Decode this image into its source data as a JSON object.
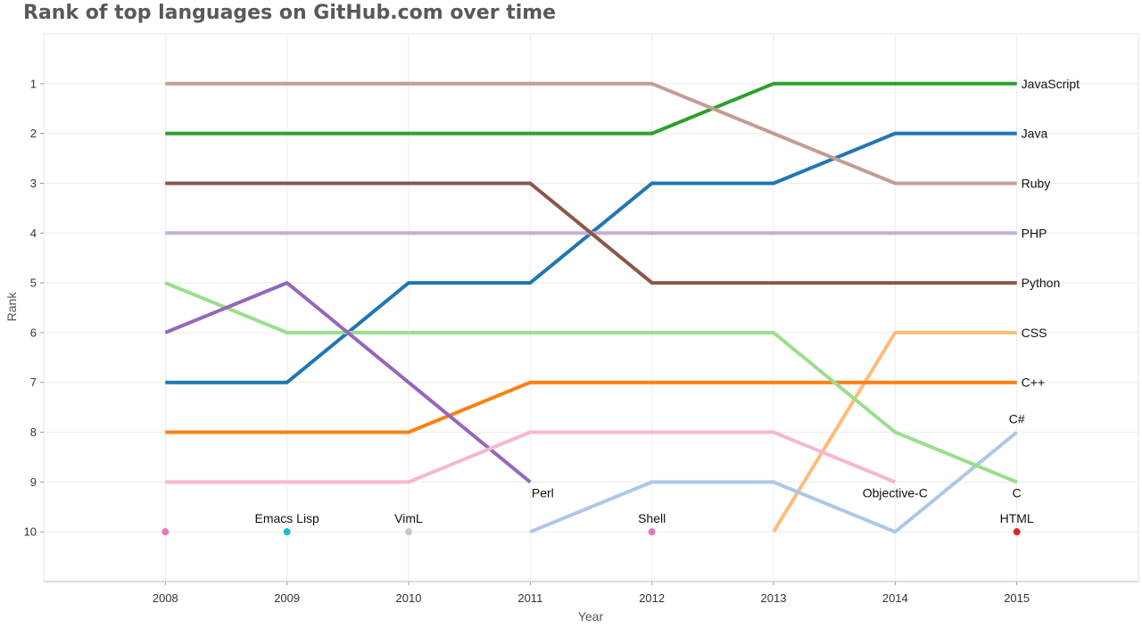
{
  "chart_data": {
    "type": "line",
    "title": "Rank of top languages on GitHub.com over time",
    "xlabel": "Year",
    "ylabel": "Rank",
    "x": [
      2008,
      2009,
      2010,
      2011,
      2012,
      2013,
      2014,
      2015
    ],
    "xlim": [
      2007,
      2016
    ],
    "ylim": [
      11,
      0
    ],
    "y_inverted": true,
    "y_ticks": [
      1,
      2,
      3,
      4,
      5,
      6,
      7,
      8,
      9,
      10
    ],
    "grid": true,
    "legend": "none (direct labels)",
    "series": [
      {
        "name": "JavaScript",
        "color": "#2ca02c",
        "values": [
          2,
          2,
          2,
          2,
          2,
          1,
          1,
          1
        ]
      },
      {
        "name": "Java",
        "color": "#1f77b4",
        "values": [
          7,
          7,
          5,
          5,
          3,
          3,
          2,
          2
        ]
      },
      {
        "name": "Ruby",
        "color": "#c49c94",
        "values": [
          1,
          1,
          1,
          1,
          1,
          2,
          3,
          3
        ]
      },
      {
        "name": "PHP",
        "color": "#c5b0d5",
        "values": [
          4,
          4,
          4,
          4,
          4,
          4,
          4,
          4
        ]
      },
      {
        "name": "Python",
        "color": "#8c564b",
        "values": [
          3,
          3,
          3,
          3,
          5,
          5,
          5,
          5
        ]
      },
      {
        "name": "CSS",
        "color": "#ffbb78",
        "values": [
          null,
          null,
          null,
          null,
          null,
          10,
          6,
          6
        ]
      },
      {
        "name": "C++",
        "color": "#ff7f0e",
        "values": [
          8,
          8,
          8,
          7,
          7,
          7,
          7,
          7
        ]
      },
      {
        "name": "C#",
        "color": "#aec7e8",
        "values": [
          null,
          null,
          null,
          10,
          9,
          9,
          10,
          8
        ]
      },
      {
        "name": "C",
        "color": "#98df8a",
        "values": [
          5,
          6,
          6,
          6,
          6,
          6,
          8,
          9
        ]
      },
      {
        "name": "Perl",
        "color": "#9467bd",
        "values": [
          6,
          5,
          7,
          9,
          null,
          null,
          null,
          null
        ]
      },
      {
        "name": "Objective-C",
        "color": "#f7b6d2",
        "values": [
          9,
          9,
          9,
          8,
          8,
          8,
          9,
          null
        ]
      },
      {
        "name": "Emacs Lisp",
        "color": "#17becf",
        "values": [
          null,
          10,
          null,
          null,
          null,
          null,
          null,
          null
        ]
      },
      {
        "name": "VimL",
        "color": "#c7c7c7",
        "values": [
          null,
          null,
          10,
          null,
          null,
          null,
          null,
          null
        ]
      },
      {
        "name": "Shell",
        "color": "#e377c2",
        "values": [
          10,
          null,
          null,
          null,
          10,
          null,
          null,
          null
        ]
      },
      {
        "name": "HTML",
        "color": "#d62728",
        "values": [
          null,
          null,
          null,
          null,
          null,
          null,
          null,
          10
        ]
      }
    ]
  }
}
